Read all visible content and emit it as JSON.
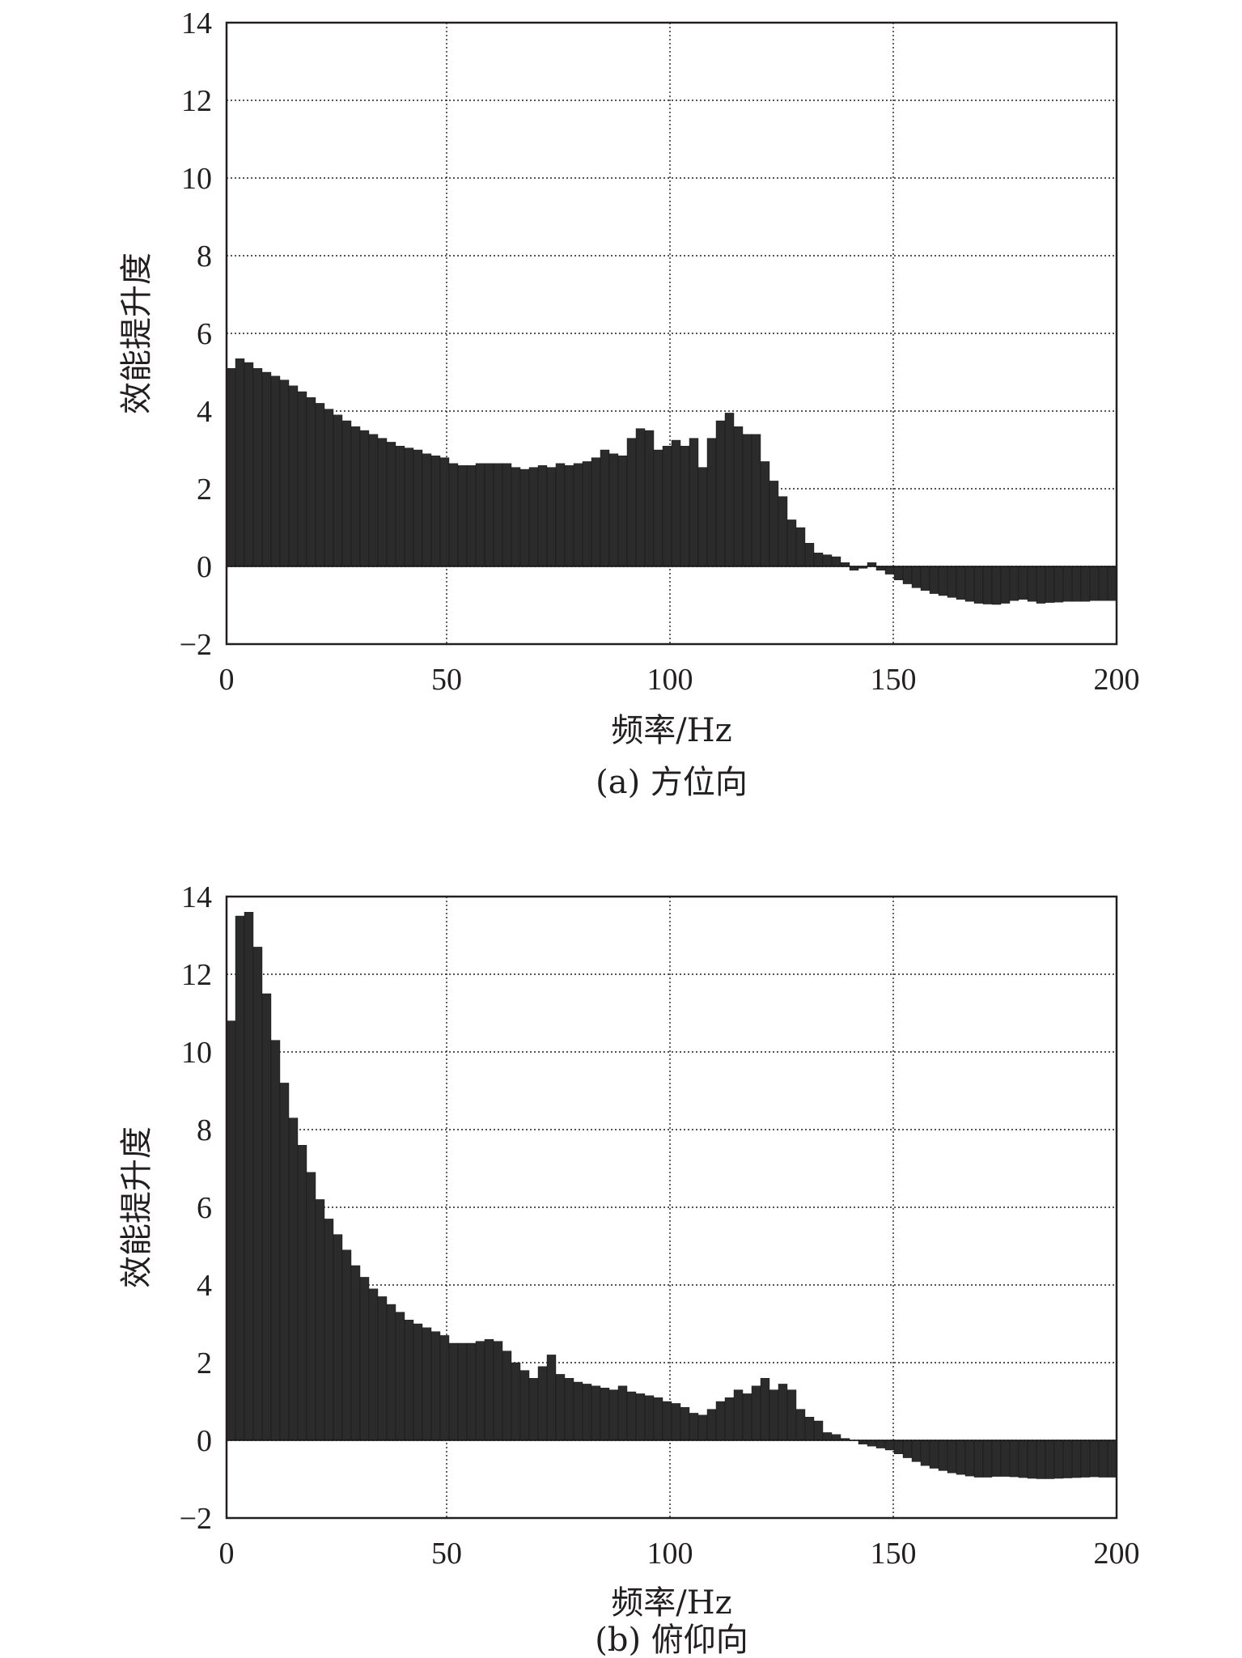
{
  "chart_data": [
    {
      "type": "bar",
      "caption": "(a) 方位向",
      "xlabel": "频率/Hz",
      "ylabel": "效能提升度",
      "xlim": [
        0,
        200
      ],
      "ylim": [
        -2,
        14
      ],
      "xticks": [
        0,
        50,
        100,
        150,
        200
      ],
      "yticks": [
        -2,
        0,
        2,
        4,
        6,
        8,
        10,
        12,
        14
      ],
      "grid": true,
      "bar_color": "#2b2b2b",
      "x": [
        1,
        3,
        5,
        7,
        9,
        11,
        13,
        15,
        17,
        19,
        21,
        23,
        25,
        27,
        29,
        31,
        33,
        35,
        37,
        39,
        41,
        43,
        45,
        47,
        49,
        51,
        53,
        55,
        57,
        59,
        61,
        63,
        65,
        67,
        69,
        71,
        73,
        75,
        77,
        79,
        81,
        83,
        85,
        87,
        89,
        91,
        93,
        95,
        97,
        99,
        101,
        103,
        105,
        107,
        109,
        111,
        113,
        115,
        117,
        119,
        121,
        123,
        125,
        127,
        129,
        131,
        133,
        135,
        137,
        139,
        141,
        143,
        145,
        147,
        149,
        151,
        153,
        155,
        157,
        159,
        161,
        163,
        165,
        167,
        169,
        171,
        173,
        175,
        177,
        179,
        181,
        183,
        185,
        187,
        189,
        191,
        193,
        195,
        197,
        199
      ],
      "values": [
        5.1,
        5.35,
        5.25,
        5.1,
        5.0,
        4.9,
        4.8,
        4.65,
        4.5,
        4.35,
        4.2,
        4.05,
        3.9,
        3.75,
        3.6,
        3.5,
        3.4,
        3.3,
        3.2,
        3.1,
        3.05,
        3.0,
        2.9,
        2.85,
        2.8,
        2.65,
        2.6,
        2.6,
        2.65,
        2.65,
        2.65,
        2.65,
        2.55,
        2.5,
        2.55,
        2.6,
        2.55,
        2.65,
        2.6,
        2.65,
        2.7,
        2.8,
        3.0,
        2.9,
        2.85,
        3.3,
        3.55,
        3.5,
        3.0,
        3.1,
        3.25,
        3.1,
        3.3,
        2.55,
        3.3,
        3.75,
        3.95,
        3.6,
        3.4,
        3.4,
        2.7,
        2.2,
        1.8,
        1.2,
        1.0,
        0.6,
        0.35,
        0.3,
        0.25,
        0.1,
        -0.1,
        -0.05,
        0.1,
        -0.1,
        -0.2,
        -0.35,
        -0.45,
        -0.55,
        -0.62,
        -0.7,
        -0.75,
        -0.8,
        -0.85,
        -0.9,
        -0.95,
        -0.97,
        -0.98,
        -0.95,
        -0.88,
        -0.85,
        -0.9,
        -0.95,
        -0.93,
        -0.92,
        -0.9,
        -0.9,
        -0.9,
        -0.88,
        -0.88,
        -0.88
      ]
    },
    {
      "type": "bar",
      "caption": "(b) 俯仰向",
      "xlabel": "频率/Hz",
      "ylabel": "效能提升度",
      "xlim": [
        0,
        200
      ],
      "ylim": [
        -2,
        14
      ],
      "xticks": [
        0,
        50,
        100,
        150,
        200
      ],
      "yticks": [
        -2,
        0,
        2,
        4,
        6,
        8,
        10,
        12,
        14
      ],
      "grid": true,
      "bar_color": "#2b2b2b",
      "x": [
        1,
        3,
        5,
        7,
        9,
        11,
        13,
        15,
        17,
        19,
        21,
        23,
        25,
        27,
        29,
        31,
        33,
        35,
        37,
        39,
        41,
        43,
        45,
        47,
        49,
        51,
        53,
        55,
        57,
        59,
        61,
        63,
        65,
        67,
        69,
        71,
        73,
        75,
        77,
        79,
        81,
        83,
        85,
        87,
        89,
        91,
        93,
        95,
        97,
        99,
        101,
        103,
        105,
        107,
        109,
        111,
        113,
        115,
        117,
        119,
        121,
        123,
        125,
        127,
        129,
        131,
        133,
        135,
        137,
        139,
        141,
        143,
        145,
        147,
        149,
        151,
        153,
        155,
        157,
        159,
        161,
        163,
        165,
        167,
        169,
        171,
        173,
        175,
        177,
        179,
        181,
        183,
        185,
        187,
        189,
        191,
        193,
        195,
        197,
        199
      ],
      "values": [
        10.8,
        13.5,
        13.6,
        12.7,
        11.5,
        10.3,
        9.2,
        8.3,
        7.6,
        6.9,
        6.2,
        5.7,
        5.3,
        4.9,
        4.5,
        4.2,
        3.9,
        3.7,
        3.5,
        3.3,
        3.1,
        3.0,
        2.9,
        2.8,
        2.7,
        2.5,
        2.5,
        2.5,
        2.55,
        2.6,
        2.55,
        2.3,
        2.0,
        1.8,
        1.6,
        1.9,
        2.2,
        1.7,
        1.6,
        1.5,
        1.45,
        1.4,
        1.35,
        1.3,
        1.4,
        1.25,
        1.2,
        1.15,
        1.1,
        1.0,
        0.95,
        0.85,
        0.7,
        0.65,
        0.8,
        1.0,
        1.1,
        1.3,
        1.2,
        1.4,
        1.6,
        1.3,
        1.45,
        1.3,
        0.8,
        0.6,
        0.5,
        0.2,
        0.15,
        0.05,
        0.0,
        -0.1,
        -0.15,
        -0.2,
        -0.25,
        -0.35,
        -0.45,
        -0.55,
        -0.65,
        -0.72,
        -0.78,
        -0.84,
        -0.88,
        -0.92,
        -0.95,
        -0.95,
        -0.93,
        -0.93,
        -0.94,
        -0.96,
        -0.98,
        -0.99,
        -0.99,
        -0.98,
        -0.97,
        -0.96,
        -0.95,
        -0.94,
        -0.95,
        -0.95
      ]
    }
  ]
}
